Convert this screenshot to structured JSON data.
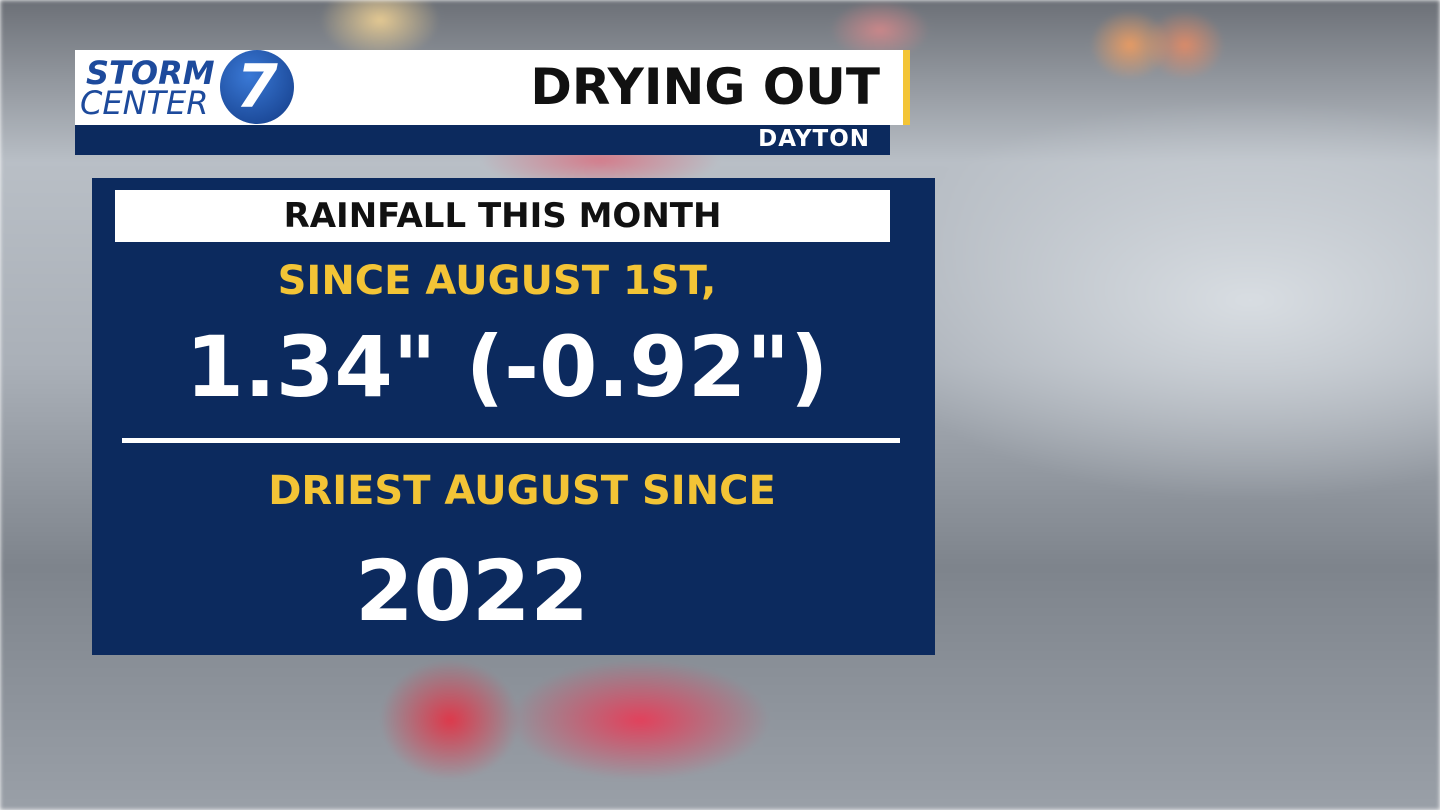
{
  "logo": {
    "line1": "STORM",
    "line2": "CENTER",
    "number": "7"
  },
  "header": {
    "title": "DRYING OUT",
    "location": "DAYTON"
  },
  "panel": {
    "heading": "RAINFALL THIS MONTH",
    "since_label": "SINCE AUGUST 1ST,",
    "rainfall": "1.34\" (-0.92\")",
    "record_label": "DRIEST AUGUST SINCE",
    "record_year": "2022"
  }
}
